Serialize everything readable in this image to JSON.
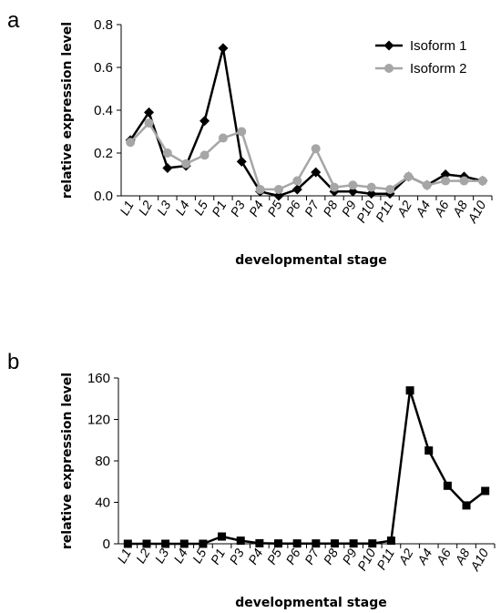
{
  "chart_data": [
    {
      "panel": "a",
      "type": "line",
      "xlabel": "developmental stage",
      "ylabel": "relative expression level",
      "ylim": [
        0,
        0.8
      ],
      "yticks": [
        "0.0",
        "0.2",
        "0.4",
        "0.6",
        "0.8"
      ],
      "categories": [
        "L1",
        "L2",
        "L3",
        "L4",
        "L5",
        "P1",
        "P3",
        "P4",
        "P5",
        "P6",
        "P7",
        "P8",
        "P9",
        "P10",
        "P11",
        "A2",
        "A4",
        "A6",
        "A8",
        "A10"
      ],
      "x_tick_labels": [
        "L1",
        "L2",
        "L3",
        "L4",
        "L5",
        "P1",
        "P3",
        "P4",
        "P5",
        "P6",
        "P7",
        "P8",
        "P9",
        "P10",
        "P11",
        "A2",
        "A4",
        "A6",
        "A8",
        "A10"
      ],
      "legend_position": "top-right",
      "series": [
        {
          "name": "Isoform 1",
          "color": "#000000",
          "marker": "diamond",
          "values": [
            0.26,
            0.39,
            0.13,
            0.14,
            0.35,
            0.69,
            0.16,
            0.02,
            0.0,
            0.03,
            0.11,
            0.02,
            0.02,
            0.01,
            0.01,
            0.09,
            0.05,
            0.1,
            0.09,
            0.07
          ]
        },
        {
          "name": "Isoform 2",
          "color": "#a6a6a6",
          "marker": "circle",
          "values": [
            0.25,
            0.34,
            0.2,
            0.15,
            0.19,
            0.27,
            0.3,
            0.03,
            0.03,
            0.07,
            0.22,
            0.04,
            0.05,
            0.04,
            0.03,
            0.09,
            0.05,
            0.07,
            0.07,
            0.07
          ]
        }
      ]
    },
    {
      "panel": "b",
      "type": "line",
      "xlabel": "developmental stage",
      "ylabel": "relative expression level",
      "ylim": [
        0,
        160
      ],
      "yticks": [
        "0",
        "40",
        "80",
        "120",
        "160"
      ],
      "categories": [
        "L1",
        "L2",
        "L3",
        "L4",
        "L5",
        "P1",
        "P3",
        "P4",
        "P5",
        "P6",
        "P7",
        "P8",
        "P9",
        "P10",
        "P11",
        "A2",
        "A4",
        "A6",
        "A8",
        "A10"
      ],
      "x_tick_labels": [
        "L1",
        "L2",
        "L3",
        "L4",
        "L5",
        "P1",
        "P3",
        "P4",
        "P5",
        "P6",
        "P7",
        "P8",
        "P9",
        "P10",
        "P11",
        "A2",
        "A4",
        "A6",
        "A8",
        "A10"
      ],
      "legend_position": "none",
      "series": [
        {
          "color": "#000000",
          "marker": "square",
          "values": [
            0,
            0,
            0,
            0,
            0,
            7,
            3,
            0.5,
            0.3,
            0.3,
            0.3,
            0.3,
            0.3,
            0.3,
            3,
            148,
            90,
            56,
            37,
            51
          ]
        }
      ]
    }
  ]
}
